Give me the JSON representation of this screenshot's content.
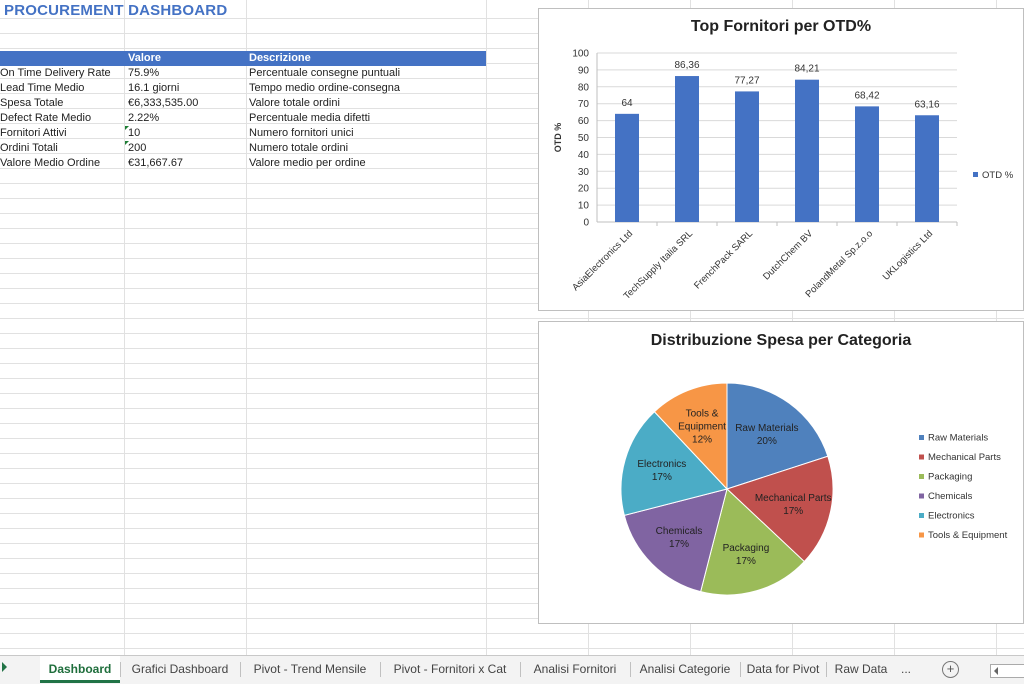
{
  "sheet": {
    "title": "PROCUREMENT DASHBOARD",
    "headers": [
      "Valore",
      "Descrizione"
    ],
    "rows": [
      {
        "label": "On Time Delivery Rate",
        "value": "75.9%",
        "desc": "Percentuale consegne puntuali"
      },
      {
        "label": "Lead Time Medio",
        "value": "16.1 giorni",
        "desc": "Tempo medio ordine-consegna"
      },
      {
        "label": "Spesa Totale",
        "value": "€6,333,535.00",
        "desc": "Valore totale ordini"
      },
      {
        "label": "Defect Rate Medio",
        "value": "2.22%",
        "desc": "Percentuale media difetti"
      },
      {
        "label": "Fornitori Attivi",
        "value": "10",
        "desc": "Numero fornitori unici"
      },
      {
        "label": "Ordini Totali",
        "value": "200",
        "desc": "Numero totale ordini"
      },
      {
        "label": "Valore Medio Ordine",
        "value": "€31,667.67",
        "desc": "Valore medio per ordine"
      }
    ]
  },
  "chart_data": [
    {
      "type": "bar",
      "title": "Top Fornitori per OTD%",
      "ylabel": "OTD %",
      "xlabel": "",
      "ylim": [
        0,
        100
      ],
      "ytick_step": 10,
      "grid": true,
      "legend": "right",
      "color": "#4472C4",
      "categories": [
        "AsiaElectronics Ltd",
        "TechSupply Italia SRL",
        "FrenchPack SARL",
        "DutchChem BV",
        "PolandMetal Sp.z.o.o",
        "UKLogistics Ltd"
      ],
      "series": [
        {
          "name": "OTD %",
          "values": [
            64,
            86.36,
            77.27,
            84.21,
            68.42,
            63.16
          ]
        }
      ],
      "data_labels": [
        "64",
        "86,36",
        "77,27",
        "84,21",
        "68,42",
        "63,16"
      ]
    },
    {
      "type": "pie",
      "title": "Distribuzione Spesa per Categoria",
      "legend": "right",
      "slices": [
        {
          "label": "Raw Materials",
          "value": 20,
          "display": "20%",
          "color": "#4F81BD"
        },
        {
          "label": "Mechanical Parts",
          "value": 17,
          "display": "17%",
          "color": "#C0504D"
        },
        {
          "label": "Packaging",
          "value": 17,
          "display": "17%",
          "color": "#9BBB59"
        },
        {
          "label": "Chemicals",
          "value": 17,
          "display": "17%",
          "color": "#8064A2"
        },
        {
          "label": "Electronics",
          "value": 17,
          "display": "17%",
          "color": "#4BACC6"
        },
        {
          "label": "Tools & Equipment",
          "value": 12,
          "display": "12%",
          "color": "#F79646"
        }
      ]
    }
  ],
  "tabs": {
    "active": "Dashboard",
    "items": [
      "Dashboard",
      "Grafici Dashboard",
      "Pivot - Trend Mensile",
      "Pivot - Fornitori x Cat",
      "Analisi Fornitori",
      "Analisi Categorie",
      "Data for Pivot",
      "Raw Data",
      "..."
    ],
    "add_symbol": "+"
  }
}
